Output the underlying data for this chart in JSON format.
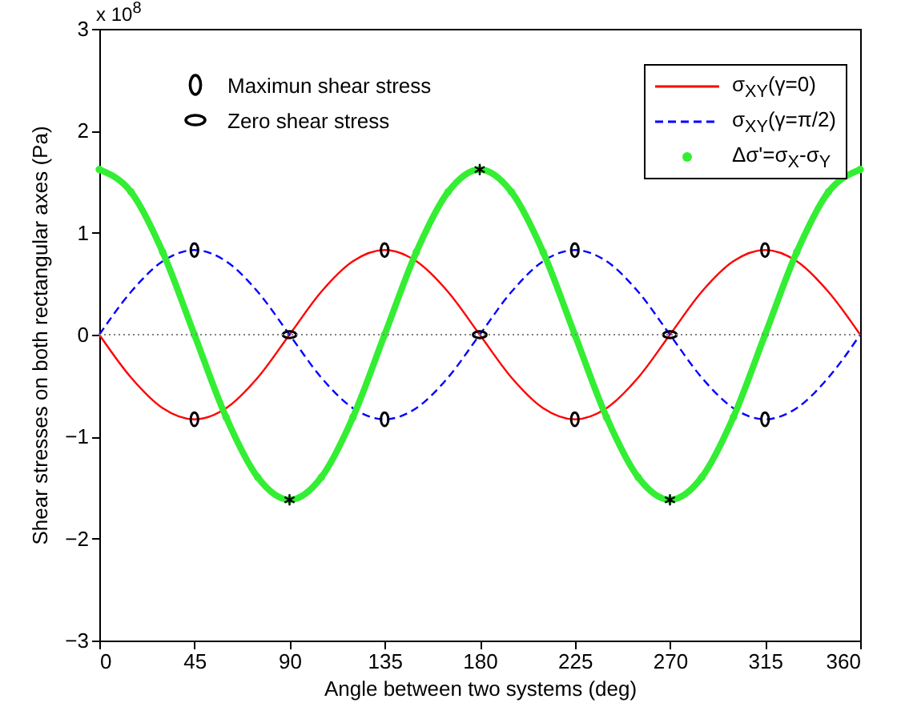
{
  "chart_data": {
    "type": "line",
    "xlabel": "Angle between two systems (deg)",
    "ylabel": "Shear stresses on both rectangular axes (Pa)",
    "annotations": [
      "x 10$^{8}$"
    ],
    "x": [
      0,
      15,
      30,
      45,
      60,
      75,
      90,
      105,
      120,
      135,
      150,
      165,
      180,
      195,
      210,
      225,
      240,
      255,
      270,
      285,
      300,
      315,
      330,
      345,
      360
    ],
    "xlim": [
      0,
      360
    ],
    "xticks": [
      0,
      45,
      90,
      135,
      180,
      225,
      270,
      315,
      360
    ],
    "ylim": [
      -3,
      3
    ],
    "yticks": [
      -3,
      -2,
      -1,
      0,
      1,
      2,
      3
    ],
    "grid": false,
    "legend": "top right",
    "ref_lines": [
      {
        "axis": "y",
        "value": 0,
        "color": "#808080",
        "line_style": "dotted"
      }
    ],
    "series": [
      {
        "name": "σ$_{XY}$(γ=0)",
        "color": "#ff0000",
        "line_style": "solid",
        "values": [
          0,
          -0.42,
          -0.72,
          -0.83,
          -0.72,
          -0.42,
          0,
          0.42,
          0.72,
          0.83,
          0.72,
          0.42,
          0,
          -0.42,
          -0.72,
          -0.83,
          -0.72,
          -0.42,
          0,
          0.42,
          0.72,
          0.83,
          0.72,
          0.42,
          0
        ]
      },
      {
        "name": "σ$_{XY}$(γ=π/2)",
        "color": "#0000ff",
        "line_style": "dashed",
        "values": [
          0,
          0.42,
          0.72,
          0.83,
          0.72,
          0.42,
          0,
          -0.42,
          -0.72,
          -0.83,
          -0.72,
          -0.42,
          0,
          0.42,
          0.72,
          0.83,
          0.72,
          0.42,
          0,
          -0.42,
          -0.72,
          -0.83,
          -0.72,
          -0.42,
          0
        ]
      },
      {
        "name": "Δσ'=σ$_{X}$-σ$_{Y}$",
        "color": "#33ee33",
        "marker": "circle",
        "values": [
          1.62,
          1.4,
          0.81,
          0,
          -0.81,
          -1.4,
          -1.62,
          -1.4,
          -0.81,
          0,
          0.81,
          1.4,
          1.62,
          1.4,
          0.81,
          0,
          -0.81,
          -1.4,
          -1.62,
          -1.4,
          -0.81,
          0,
          0.81,
          1.4,
          1.62
        ]
      },
      {
        "name": "Maximun shear stress",
        "type": "scatter",
        "color": "#000000",
        "marker": "circle",
        "x": [
          45,
          45,
          135,
          135,
          225,
          225,
          315,
          315
        ],
        "values": [
          0.83,
          -0.83,
          0.83,
          -0.83,
          0.83,
          -0.83,
          0.83,
          -0.83
        ]
      },
      {
        "name": "Zero shear stress",
        "type": "scatter",
        "color": "#000000",
        "marker": "circle",
        "x": [
          90,
          180,
          270
        ],
        "values": [
          0,
          0,
          0
        ]
      },
      {
        "type": "scatter",
        "color": "#000000",
        "marker": "cross",
        "x": [
          90,
          180,
          270
        ],
        "values": [
          -1.62,
          1.62,
          -1.62
        ]
      }
    ]
  }
}
